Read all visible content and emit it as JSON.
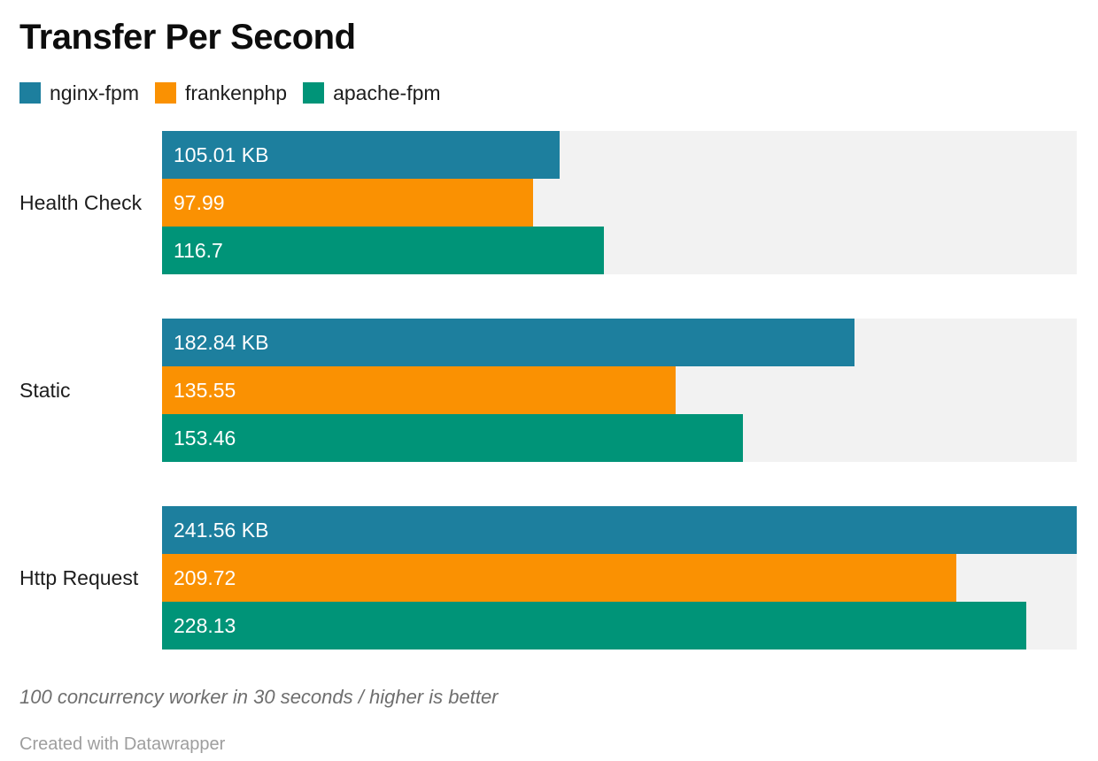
{
  "title": "Transfer Per Second",
  "legend": {
    "items": [
      {
        "label": "nginx-fpm",
        "color": "#1d7f9e"
      },
      {
        "label": "frankenphp",
        "color": "#fa9102"
      },
      {
        "label": "apache-fpm",
        "color": "#009478"
      }
    ]
  },
  "chart_data": {
    "type": "bar",
    "orientation": "horizontal",
    "title": "Transfer Per Second",
    "unit": "KB",
    "xlim": [
      0,
      241.56
    ],
    "grid": false,
    "legend_position": "top-left",
    "value_labels_inside_bars": true,
    "track_color": "#f2f2f2",
    "series_names": [
      "nginx-fpm",
      "frankenphp",
      "apache-fpm"
    ],
    "series_colors": [
      "#1d7f9e",
      "#fa9102",
      "#009478"
    ],
    "categories": [
      "Health Check",
      "Static",
      "Http Request"
    ],
    "groups": [
      {
        "label": "Health Check",
        "bars": [
          {
            "series": "nginx-fpm",
            "value": 105.01,
            "display": "105.01 KB"
          },
          {
            "series": "frankenphp",
            "value": 97.99,
            "display": "97.99"
          },
          {
            "series": "apache-fpm",
            "value": 116.7,
            "display": "116.7"
          }
        ]
      },
      {
        "label": "Static",
        "bars": [
          {
            "series": "nginx-fpm",
            "value": 182.84,
            "display": "182.84 KB"
          },
          {
            "series": "frankenphp",
            "value": 135.55,
            "display": "135.55"
          },
          {
            "series": "apache-fpm",
            "value": 153.46,
            "display": "153.46"
          }
        ]
      },
      {
        "label": "Http Request",
        "bars": [
          {
            "series": "nginx-fpm",
            "value": 241.56,
            "display": "241.56 KB"
          },
          {
            "series": "frankenphp",
            "value": 209.72,
            "display": "209.72"
          },
          {
            "series": "apache-fpm",
            "value": 228.13,
            "display": "228.13"
          }
        ]
      }
    ]
  },
  "footer": {
    "note": "100 concurrency worker in 30 seconds / higher is better",
    "byline": "Created with Datawrapper"
  }
}
